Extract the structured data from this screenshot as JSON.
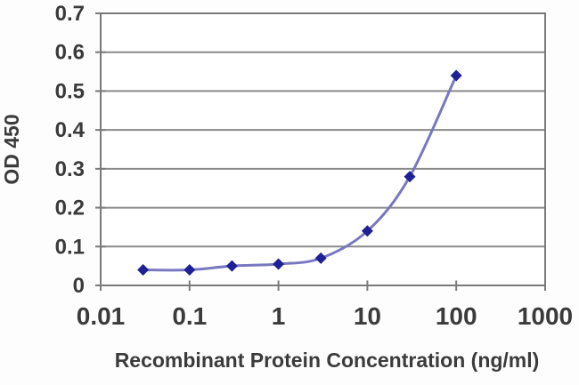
{
  "chart_data": {
    "type": "line",
    "title": "",
    "xlabel": "Recombinant Protein Concentration (ng/ml)",
    "ylabel": "OD 450",
    "x_scale": "log",
    "xlim": [
      0.01,
      1000
    ],
    "ylim": [
      0,
      0.7
    ],
    "x_tick_values": [
      0.01,
      0.1,
      1,
      10,
      100,
      1000
    ],
    "x_tick_labels": [
      "0.01",
      "0.1",
      "1",
      "10",
      "100",
      "1000"
    ],
    "y_tick_values": [
      0,
      0.1,
      0.2,
      0.3,
      0.4,
      0.5,
      0.6,
      0.7
    ],
    "y_tick_labels": [
      "0",
      "0.1",
      "0.2",
      "0.3",
      "0.4",
      "0.5",
      "0.6",
      "0.7"
    ],
    "grid": "horizontal",
    "legend": "none",
    "marker": "diamond",
    "line_style": "smooth",
    "series": [
      {
        "name": "OD 450",
        "x": [
          0.03,
          0.1,
          0.3,
          1,
          3,
          10,
          30,
          100
        ],
        "y": [
          0.04,
          0.04,
          0.05,
          0.055,
          0.07,
          0.14,
          0.28,
          0.54
        ]
      }
    ],
    "colors": {
      "line": "#7878c0",
      "marker": "#1f1f96",
      "grid": "#8a8a8a",
      "border": "#7a7a7a",
      "text": "#3b3b3b",
      "plot_bg": "#ffffff",
      "page_bg": "#fdfdfd"
    }
  }
}
